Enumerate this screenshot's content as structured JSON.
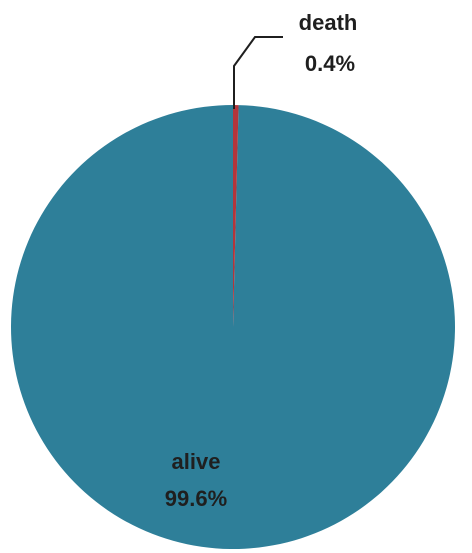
{
  "chart_data": {
    "type": "pie",
    "title": "",
    "slices": [
      {
        "name": "alive",
        "label": "alive",
        "value": 99.6,
        "value_label": "99.6%",
        "color": "#2e7f99"
      },
      {
        "name": "death",
        "label": "death",
        "value": 0.4,
        "value_label": "0.4%",
        "color": "#b3353b"
      }
    ],
    "legend": "none"
  }
}
